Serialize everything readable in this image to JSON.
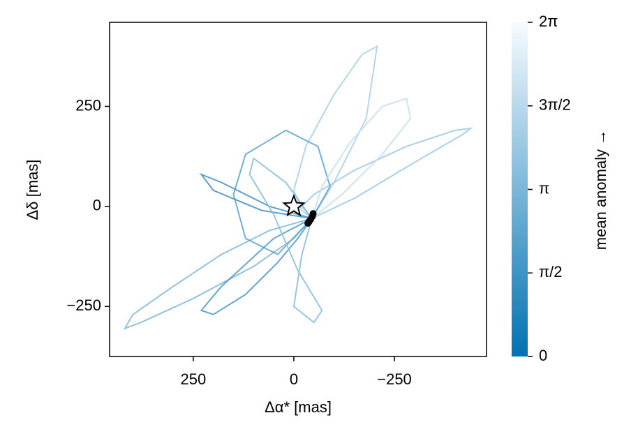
{
  "chart_data": {
    "type": "orbit",
    "xlabel": "Δα* [mas]",
    "ylabel": "Δδ [mas]",
    "xlim": [
      458,
      -479
    ],
    "ylim": [
      -375,
      460
    ],
    "xticks": [
      250,
      0,
      {
        "value": -250,
        "label": "−250"
      }
    ],
    "yticks": [
      {
        "value": -250,
        "label": "−250"
      },
      0,
      250
    ],
    "orbits": [
      {
        "color": "#7fb6d9",
        "x": [
          -45,
          0,
          100,
          250,
          380,
          420,
          400,
          300,
          180,
          60,
          -45
        ],
        "y": [
          -30,
          -80,
          -150,
          -230,
          -290,
          -305,
          -270,
          -200,
          -120,
          -60,
          -30
        ]
      },
      {
        "color": "#9cc8e3",
        "x": [
          -45,
          -150,
          -300,
          -420,
          -440,
          -400,
          -280,
          -150,
          -50,
          -20,
          -45
        ],
        "y": [
          -30,
          20,
          110,
          180,
          195,
          190,
          150,
          90,
          30,
          0,
          -30
        ]
      },
      {
        "color": "#a8cfe6",
        "x": [
          -45,
          -100,
          -180,
          -207,
          -170,
          -100,
          -30,
          0,
          -20,
          -45
        ],
        "y": [
          -30,
          60,
          220,
          400,
          380,
          280,
          150,
          40,
          -10,
          -30
        ]
      },
      {
        "color": "#5aa2cf",
        "x": [
          -45,
          -90,
          -60,
          20,
          120,
          150,
          120,
          40,
          -45
        ],
        "y": [
          -30,
          50,
          150,
          190,
          130,
          30,
          -80,
          -120,
          -30
        ]
      },
      {
        "color": "#4a97c9",
        "x": [
          -45,
          50,
          180,
          230,
          200,
          120,
          40,
          -10,
          -45
        ],
        "y": [
          -30,
          -80,
          -200,
          -260,
          -270,
          -220,
          -140,
          -80,
          -30
        ]
      },
      {
        "color": "#c3def0",
        "x": [
          -45,
          -120,
          -220,
          -290,
          -280,
          -220,
          -140,
          -70,
          -45
        ],
        "y": [
          -30,
          30,
          130,
          220,
          270,
          250,
          160,
          50,
          -30
        ]
      },
      {
        "color": "#3f8fc4",
        "x": [
          -45,
          80,
          200,
          230,
          180,
          60,
          -45
        ],
        "y": [
          -30,
          -10,
          40,
          80,
          60,
          0,
          -30
        ]
      },
      {
        "color": "#86bcdc",
        "x": [
          -45,
          20,
          100,
          110,
          50,
          -10,
          -70,
          -50,
          0,
          -20,
          -45
        ],
        "y": [
          -30,
          60,
          120,
          80,
          -20,
          -160,
          -260,
          -290,
          -250,
          -120,
          -30
        ]
      }
    ],
    "star": {
      "x": [
        0
      ],
      "y": [
        0
      ],
      "color": "#ffffff"
    },
    "planet": {
      "x": [
        -48,
        -46,
        -42,
        -38,
        -35
      ],
      "y": [
        -18,
        -25,
        -32,
        -38,
        -42
      ],
      "color": "#000000"
    },
    "colorbar": {
      "label": "mean anomaly →",
      "lim": [
        0,
        6.2832
      ],
      "colors": [
        "#0072b2",
        "#f7fbff"
      ],
      "ticks": [
        {
          "value": 0,
          "label": "0"
        },
        {
          "value": 1.5708,
          "label": "π/2"
        },
        {
          "value": 3.1416,
          "label": "π"
        },
        {
          "value": 4.7124,
          "label": "3π/2"
        },
        {
          "value": 6.2832,
          "label": "2π"
        }
      ]
    }
  }
}
